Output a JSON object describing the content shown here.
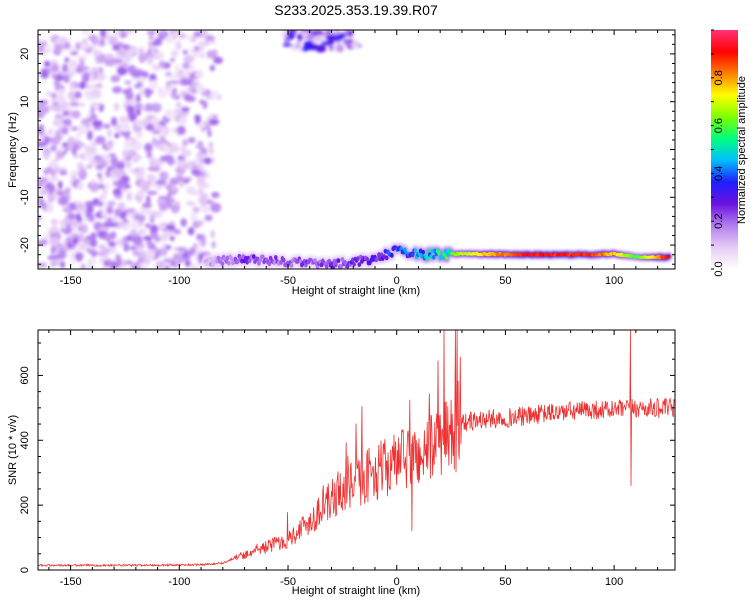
{
  "title": "S233.2025.353.19.39.R07",
  "chart_data": [
    {
      "type": "heatmap",
      "xlabel": "Height of straight line (km)",
      "ylabel": "Frequency (Hz)",
      "xlim": [
        -165,
        128
      ],
      "ylim": [
        -25,
        25
      ],
      "x_ticks": [
        -150,
        -100,
        -50,
        0,
        50,
        100
      ],
      "y_ticks": [
        -20,
        -10,
        0,
        10,
        20
      ],
      "colorbar": {
        "label": "Normalized spectral amplitude",
        "range": [
          0,
          1
        ],
        "ticks": [
          0.0,
          0.2,
          0.4,
          0.6,
          0.8
        ],
        "colormap": [
          "#ffffff",
          "#e6ccf5",
          "#b27ef0",
          "#6a11e0",
          "#1f1fff",
          "#00bfff",
          "#00ff7f",
          "#7fff00",
          "#ffff00",
          "#ff8000",
          "#ff0000",
          "#ff3377"
        ]
      },
      "features": [
        {
          "desc": "noise",
          "x_range": [
            -165,
            -82
          ],
          "freq_range": [
            -25,
            25
          ],
          "amplitude": 0.1
        },
        {
          "desc": "upper band",
          "x_range": [
            -52,
            -18
          ],
          "freq_center": 23.5,
          "amplitude": 0.3
        },
        {
          "desc": "signal track",
          "x": [
            -88,
            -70,
            -50,
            -30,
            -10,
            0,
            10,
            30,
            60,
            90,
            100,
            110,
            125
          ],
          "freq": [
            -23.5,
            -23,
            -23.5,
            -24,
            -23,
            -21,
            -22,
            -21.8,
            -22,
            -22,
            -21.8,
            -22.5,
            -22.5
          ],
          "amplitude": [
            0.15,
            0.3,
            0.25,
            0.3,
            0.35,
            0.45,
            0.5,
            0.7,
            0.95,
            0.9,
            0.8,
            0.6,
            0.95
          ]
        }
      ]
    },
    {
      "type": "line",
      "xlabel": "Height of straight line (km)",
      "ylabel": "SNR (10 * v/v)",
      "xlim": [
        -165,
        128
      ],
      "ylim": [
        0,
        740
      ],
      "x_ticks": [
        -150,
        -100,
        -50,
        0,
        50,
        100
      ],
      "y_ticks": [
        0,
        200,
        400,
        600
      ],
      "color": "#ef3030",
      "envelope": {
        "x": [
          -165,
          -120,
          -90,
          -80,
          -72,
          -60,
          -50,
          -40,
          -30,
          -20,
          -10,
          0,
          10,
          20,
          30,
          40,
          50,
          60,
          70,
          80,
          90,
          100,
          110,
          120,
          128
        ],
        "y": [
          15,
          15,
          17,
          22,
          45,
          75,
          100,
          160,
          230,
          280,
          320,
          350,
          370,
          420,
          460,
          470,
          475,
          480,
          490,
          495,
          500,
          500,
          505,
          505,
          505
        ]
      },
      "spikes": [
        {
          "x": -16,
          "y": 505
        },
        {
          "x": 6,
          "y": 525
        },
        {
          "x": 7,
          "y": 120
        },
        {
          "x": 107.5,
          "y": 740
        },
        {
          "x": 107.8,
          "y": 260
        }
      ]
    }
  ]
}
